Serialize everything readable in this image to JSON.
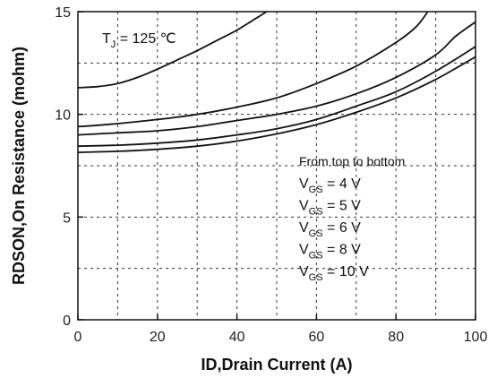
{
  "chart_data": {
    "type": "line",
    "xlabel": "ID,Drain Current (A)",
    "ylabel": "RDSON,On Resistance (mohm)",
    "xlim": [
      0,
      100
    ],
    "ylim": [
      0,
      15
    ],
    "x_ticks": [
      0,
      20,
      40,
      60,
      80,
      100
    ],
    "y_ticks": [
      0,
      5,
      10,
      15
    ],
    "grid": true,
    "annotations": {
      "tj_main": "T",
      "tj_sub": "J",
      "tj_rest": " = 125 ℃",
      "order_note": "From top to bottom",
      "legend_items": [
        {
          "main": "V",
          "sub": "GS",
          "rest": " = 4 V"
        },
        {
          "main": "V",
          "sub": "GS",
          "rest": " = 5 V"
        },
        {
          "main": "V",
          "sub": "GS",
          "rest": " = 6 V"
        },
        {
          "main": "V",
          "sub": "GS",
          "rest": " = 8 V"
        },
        {
          "main": "V",
          "sub": "GS",
          "rest": " = 10 V"
        }
      ]
    },
    "series": [
      {
        "x": [
          0,
          5,
          10,
          15,
          20,
          25,
          30,
          35,
          40,
          45,
          47.5
        ],
        "y": [
          11.3,
          11.35,
          11.5,
          11.8,
          12.2,
          12.65,
          13.1,
          13.6,
          14.1,
          14.7,
          15
        ]
      },
      {
        "x": [
          0,
          10,
          20,
          30,
          40,
          50,
          60,
          70,
          80,
          85,
          88
        ],
        "y": [
          9.4,
          9.55,
          9.75,
          10.0,
          10.35,
          10.8,
          11.5,
          12.35,
          13.5,
          14.25,
          15
        ]
      },
      {
        "x": [
          0,
          10,
          20,
          30,
          40,
          50,
          60,
          70,
          80,
          90,
          95,
          100
        ],
        "y": [
          9.0,
          9.1,
          9.2,
          9.4,
          9.7,
          10.0,
          10.4,
          11.0,
          11.8,
          12.9,
          13.8,
          14.5
        ]
      },
      {
        "x": [
          0,
          10,
          20,
          30,
          40,
          50,
          60,
          70,
          80,
          90,
          100
        ],
        "y": [
          8.45,
          8.5,
          8.6,
          8.75,
          9.0,
          9.3,
          9.75,
          10.4,
          11.1,
          12.1,
          13.3
        ]
      },
      {
        "x": [
          0,
          10,
          20,
          30,
          40,
          50,
          60,
          70,
          80,
          90,
          100
        ],
        "y": [
          8.15,
          8.2,
          8.3,
          8.45,
          8.7,
          9.05,
          9.5,
          10.1,
          10.8,
          11.7,
          12.8
        ]
      }
    ]
  }
}
